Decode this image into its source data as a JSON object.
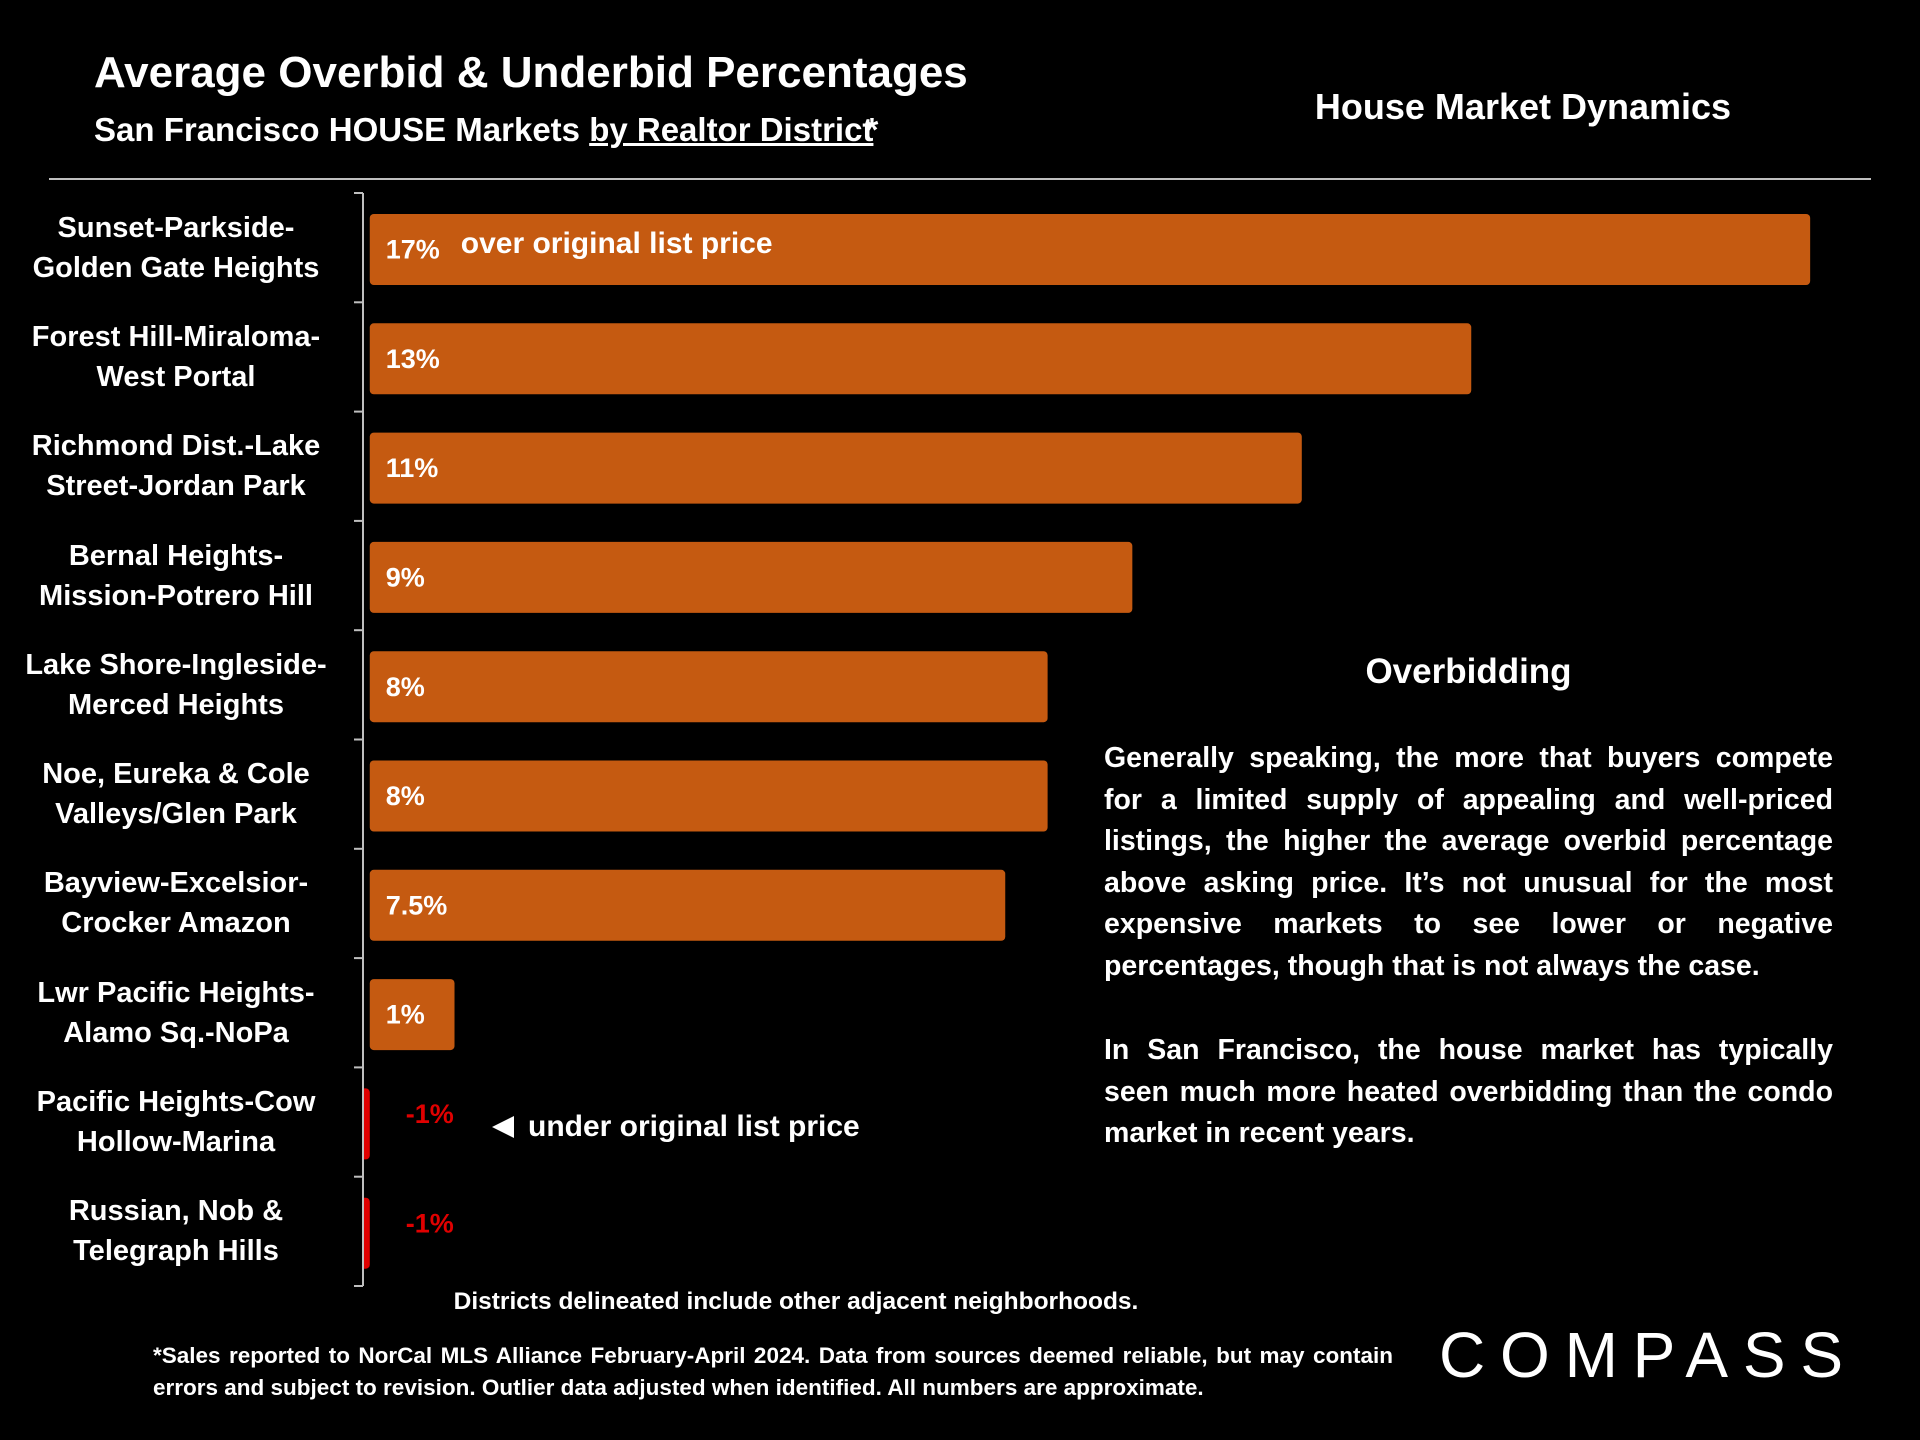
{
  "chart_data": {
    "type": "bar",
    "orientation": "horizontal",
    "title": "Average Overbid & Underbid Percentages",
    "subtitle": {
      "text": "San Francisco HOUSE Markets",
      "underlined": "by Realtor District",
      "mark": "*"
    },
    "side_title": "House Market Dynamics",
    "categories": [
      "Sunset-Parkside-\nGolden Gate Heights",
      "Forest Hill-Miraloma-\nWest Portal",
      "Richmond Dist.-Lake\nStreet-Jordan Park",
      "Bernal Heights-\nMission-Potrero Hill",
      "Lake Shore-Ingleside-\nMerced Heights",
      "Noe, Eureka & Cole\nValleys/Glen Park",
      "Bayview-Excelsior-\nCrocker Amazon",
      "Lwr Pacific Heights-\nAlamo Sq.-NoPa",
      "Pacific Heights-Cow\nHollow-Marina",
      "Russian, Nob &\nTelegraph Hills"
    ],
    "values": [
      17,
      13,
      11,
      9,
      8,
      8,
      7.5,
      1,
      -1,
      -1
    ],
    "value_labels": [
      "17%",
      "13%",
      "11%",
      "9%",
      "8%",
      "8%",
      "7.5%",
      "1%",
      "-1%",
      "-1%"
    ],
    "color": "#c55a11",
    "negative_color": "#e00000",
    "xlim": [
      -0.08,
      17.6
    ],
    "annotations": {
      "over": "over original list price",
      "under": "under original list price"
    },
    "panel": {
      "heading": "Overbidding",
      "paragraphs": [
        "Generally speaking, the more that buyers compete for a limited supply of appealing and well-priced listings, the higher the average overbid percentage above asking price. It’s not unusual for the most expensive markets to see lower or negative percentages, though that is not always the case.",
        "In San Francisco, the house market has typically seen much more heated overbidding than the condo market in recent years."
      ]
    },
    "note": "Districts delineated include other adjacent neighborhoods.",
    "footnote": "*Sales reported to NorCal MLS Alliance February-April 2024. Data from sources deemed reliable, but may contain errors and subject to revision. Outlier data adjusted when identified. All numbers are approximate.",
    "logo": "COMPASS"
  }
}
